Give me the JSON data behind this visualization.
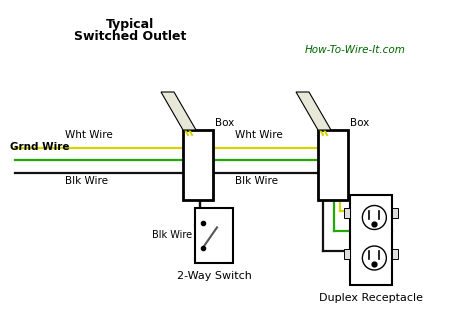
{
  "title_line1": "Typical",
  "title_line2": "Switched Outlet",
  "watermark": "How-To-Wire-It.com",
  "bg_color": "#ffffff",
  "wire_colors": {
    "yellow": "#d4d400",
    "green": "#22aa00",
    "black": "#111111"
  },
  "labels": {
    "wht_wire_left": "Wht Wire",
    "grnd_wire": "Grnd Wire",
    "blk_wire_left": "Blk Wire",
    "wht_wire_right": "Wht Wire",
    "blk_wire_right": "Blk Wire",
    "blk_wire_switch": "Blk Wire",
    "box_left": "Box",
    "box_right": "Box",
    "switch_label": "2-Way Switch",
    "receptacle_label": "Duplex Receptacle"
  }
}
